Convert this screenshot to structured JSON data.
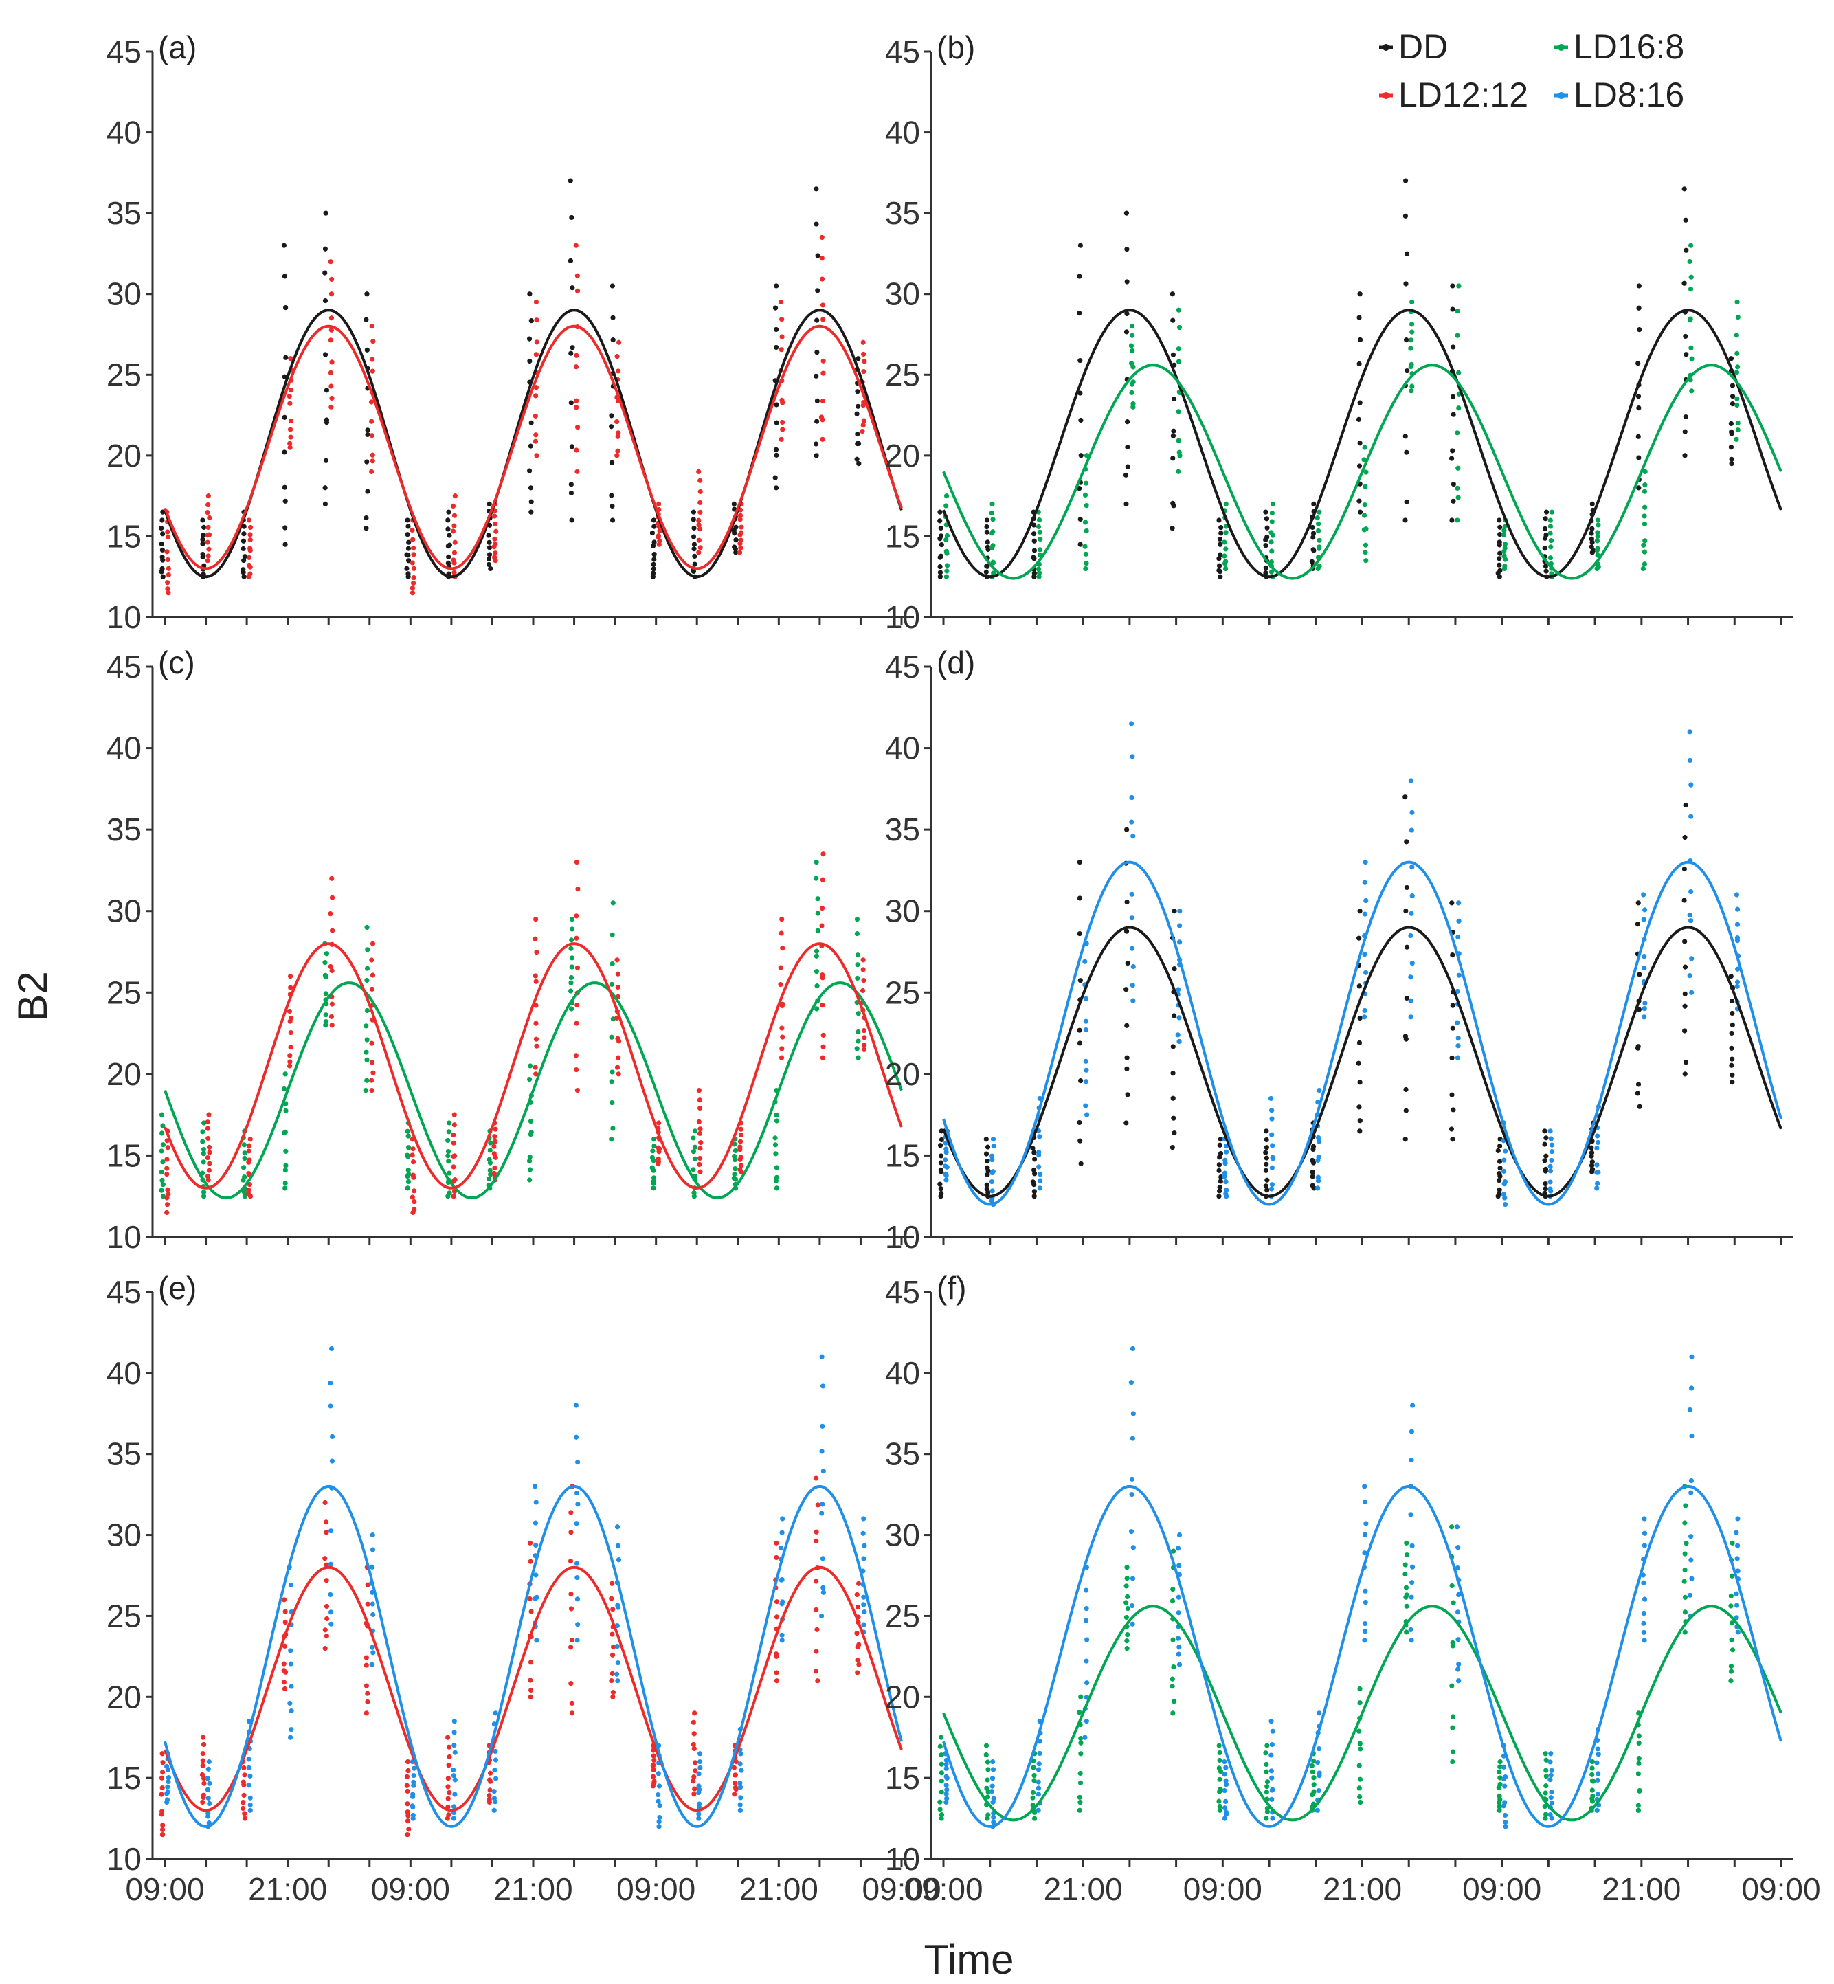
{
  "figure": {
    "ylabel": "B2",
    "xlabel": "Time"
  },
  "legend": [
    {
      "name": "DD",
      "color": "#1a1a1a"
    },
    {
      "name": "LD16:8",
      "color": "#00a651"
    },
    {
      "name": "LD12:12",
      "color": "#ee2b2b"
    },
    {
      "name": "LD8:16",
      "color": "#1f8fe8"
    }
  ],
  "chart_data": {
    "type": "scatter",
    "note": "Six panels of B2 vs time with fitted cosine curves per light regime; x in hours since first 09:00",
    "xlim": [
      0,
      72
    ],
    "ylim": [
      10,
      45
    ],
    "yticks": [
      10,
      15,
      20,
      25,
      30,
      35,
      40,
      45
    ],
    "xtick_values": [
      0,
      12,
      24,
      36,
      48,
      60,
      72
    ],
    "xtick_labels": [
      "09:00",
      "21:00",
      "09:00",
      "21:00",
      "09:00",
      "21:00",
      "09:00"
    ],
    "sampling_hours": [
      0,
      4,
      8,
      12,
      16,
      20,
      24,
      28,
      32,
      36,
      40,
      44,
      48,
      52,
      56,
      60,
      64,
      68
    ],
    "series": {
      "DD": {
        "color": "#1a1a1a",
        "fit": {
          "mesor": 20.75,
          "amplitude": 8.25,
          "peak_hour": 16,
          "period": 24
        },
        "point_ranges": [
          [
            12.5,
            16.5
          ],
          [
            12.5,
            16
          ],
          [
            12.5,
            16.5
          ],
          [
            14.5,
            33
          ],
          [
            17,
            35
          ],
          [
            15.5,
            30
          ],
          [
            12.5,
            16
          ],
          [
            12.5,
            16.5
          ],
          [
            13,
            17
          ],
          [
            16.5,
            30
          ],
          [
            16,
            37
          ],
          [
            16,
            30.5
          ],
          [
            12.5,
            16
          ],
          [
            12.5,
            16.5
          ],
          [
            14,
            17
          ],
          [
            18,
            30.5
          ],
          [
            20,
            36.5
          ],
          [
            19.5,
            26
          ]
        ]
      },
      "LD12:12": {
        "color": "#ee2b2b",
        "fit": {
          "mesor": 20.5,
          "amplitude": 7.5,
          "peak_hour": 16,
          "period": 24
        },
        "point_ranges": [
          [
            11.5,
            16.5
          ],
          [
            13.5,
            17.5
          ],
          [
            12.5,
            16
          ],
          [
            20.5,
            26
          ],
          [
            23,
            32
          ],
          [
            19,
            28
          ],
          [
            11.5,
            16
          ],
          [
            12.5,
            17.5
          ],
          [
            13.5,
            17
          ],
          [
            20,
            29.5
          ],
          [
            19,
            33
          ],
          [
            20,
            27
          ],
          [
            14.5,
            17
          ],
          [
            14,
            19
          ],
          [
            14,
            17
          ],
          [
            21,
            29.5
          ],
          [
            21,
            33.5
          ],
          [
            21.5,
            27
          ]
        ]
      },
      "LD16:8": {
        "color": "#00a651",
        "fit": {
          "mesor": 19.0,
          "amplitude": 6.6,
          "peak_hour": 18,
          "period": 24
        },
        "point_ranges": [
          [
            12.5,
            17.5
          ],
          [
            12.5,
            17
          ],
          [
            12.5,
            16.5
          ],
          [
            13,
            20
          ],
          [
            23,
            28
          ],
          [
            19,
            29
          ],
          [
            13,
            17
          ],
          [
            12.5,
            17
          ],
          [
            13,
            16.5
          ],
          [
            13.5,
            20.5
          ],
          [
            24,
            29.5
          ],
          [
            16,
            30.5
          ],
          [
            13,
            16
          ],
          [
            12.5,
            16.5
          ],
          [
            13,
            16
          ],
          [
            13,
            19
          ],
          [
            24,
            33
          ],
          [
            21,
            29.5
          ]
        ]
      },
      "LD8:16": {
        "color": "#1f8fe8",
        "fit": {
          "mesor": 22.5,
          "amplitude": 10.5,
          "peak_hour": 16,
          "period": 24
        },
        "point_ranges": [
          [
            13.5,
            16.5
          ],
          [
            12,
            16
          ],
          [
            13,
            18.5
          ],
          [
            17.5,
            28
          ],
          [
            24.5,
            41.5
          ],
          [
            22,
            30
          ],
          [
            12.5,
            16
          ],
          [
            12.5,
            18.5
          ],
          [
            13,
            19
          ],
          [
            23.5,
            33
          ],
          [
            23.5,
            38
          ],
          [
            21,
            30.5
          ],
          [
            12,
            17
          ],
          [
            12.5,
            16.5
          ],
          [
            13,
            18
          ],
          [
            23.5,
            31
          ],
          [
            25,
            41
          ],
          [
            24,
            31
          ]
        ]
      }
    },
    "panels": [
      {
        "label": "(a)",
        "series": [
          "DD",
          "LD12:12"
        ]
      },
      {
        "label": "(b)",
        "series": [
          "DD",
          "LD16:8"
        ]
      },
      {
        "label": "(c)",
        "series": [
          "LD16:8",
          "LD12:12"
        ]
      },
      {
        "label": "(d)",
        "series": [
          "DD",
          "LD8:16"
        ]
      },
      {
        "label": "(e)",
        "series": [
          "LD12:12",
          "LD8:16"
        ]
      },
      {
        "label": "(f)",
        "series": [
          "LD16:8",
          "LD8:16"
        ]
      }
    ]
  }
}
